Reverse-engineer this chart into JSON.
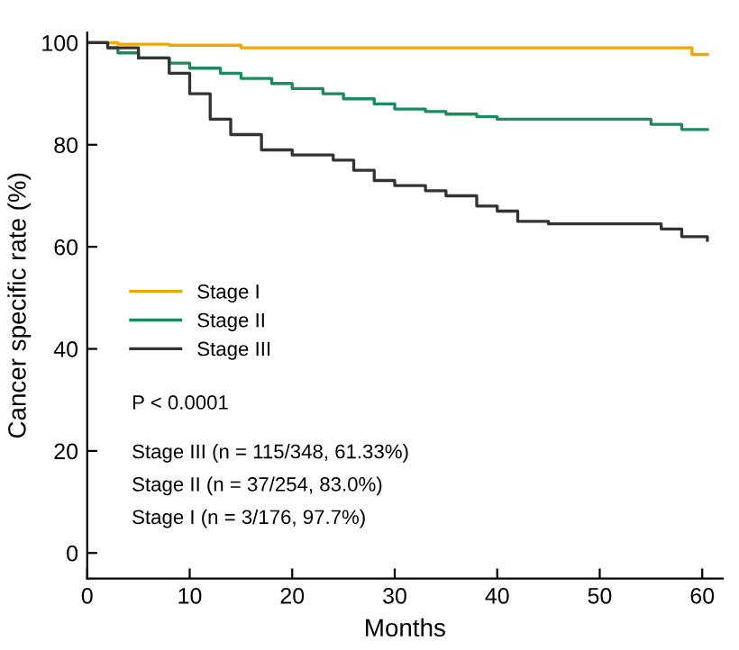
{
  "chart_data": {
    "type": "step",
    "xlabel": "Months",
    "ylabel": "Cancer specific rate (%)",
    "xlim": [
      0,
      62
    ],
    "ylim": [
      -5,
      102
    ],
    "xticks": [
      0,
      10,
      20,
      30,
      40,
      50,
      60
    ],
    "yticks": [
      0,
      20,
      40,
      60,
      80,
      100
    ],
    "legend": "left",
    "grid": false,
    "line_style": "solid",
    "marker": "none",
    "annotations": [
      "P < 0.0001",
      "Stage III (n = 115/348, 61.33%)",
      "Stage II (n = 37/254, 83.0%)",
      "Stage I (n = 3/176, 97.7%)"
    ],
    "series": [
      {
        "name": "Stage I",
        "color": "#f0a800",
        "x": [
          0,
          3,
          8,
          15,
          59,
          60.5
        ],
        "values": [
          100,
          99.7,
          99.5,
          99,
          97.7,
          97.7
        ]
      },
      {
        "name": "Stage II",
        "color": "#1a8a5f",
        "x": [
          0,
          2,
          3,
          5,
          8,
          10,
          13,
          15,
          18,
          20,
          23,
          25,
          28,
          30,
          33,
          35,
          38,
          40,
          50,
          55,
          58,
          60.5
        ],
        "values": [
          100,
          99,
          98,
          97,
          96,
          95,
          94,
          93,
          92,
          91,
          90,
          89,
          88,
          87,
          86.5,
          86,
          85.5,
          85,
          85,
          84,
          83,
          83
        ]
      },
      {
        "name": "Stage III",
        "color": "#333333",
        "x": [
          0,
          2,
          5,
          8,
          10,
          12,
          14,
          17,
          20,
          24,
          26,
          28,
          30,
          33,
          35,
          38,
          40,
          42,
          45,
          54,
          56,
          58,
          60.5
        ],
        "values": [
          100,
          99,
          97,
          94,
          90,
          85,
          82,
          79,
          78,
          77,
          75,
          73,
          72,
          71,
          70,
          68,
          67,
          65,
          64.5,
          64.5,
          63.5,
          62,
          61.3
        ]
      }
    ]
  }
}
